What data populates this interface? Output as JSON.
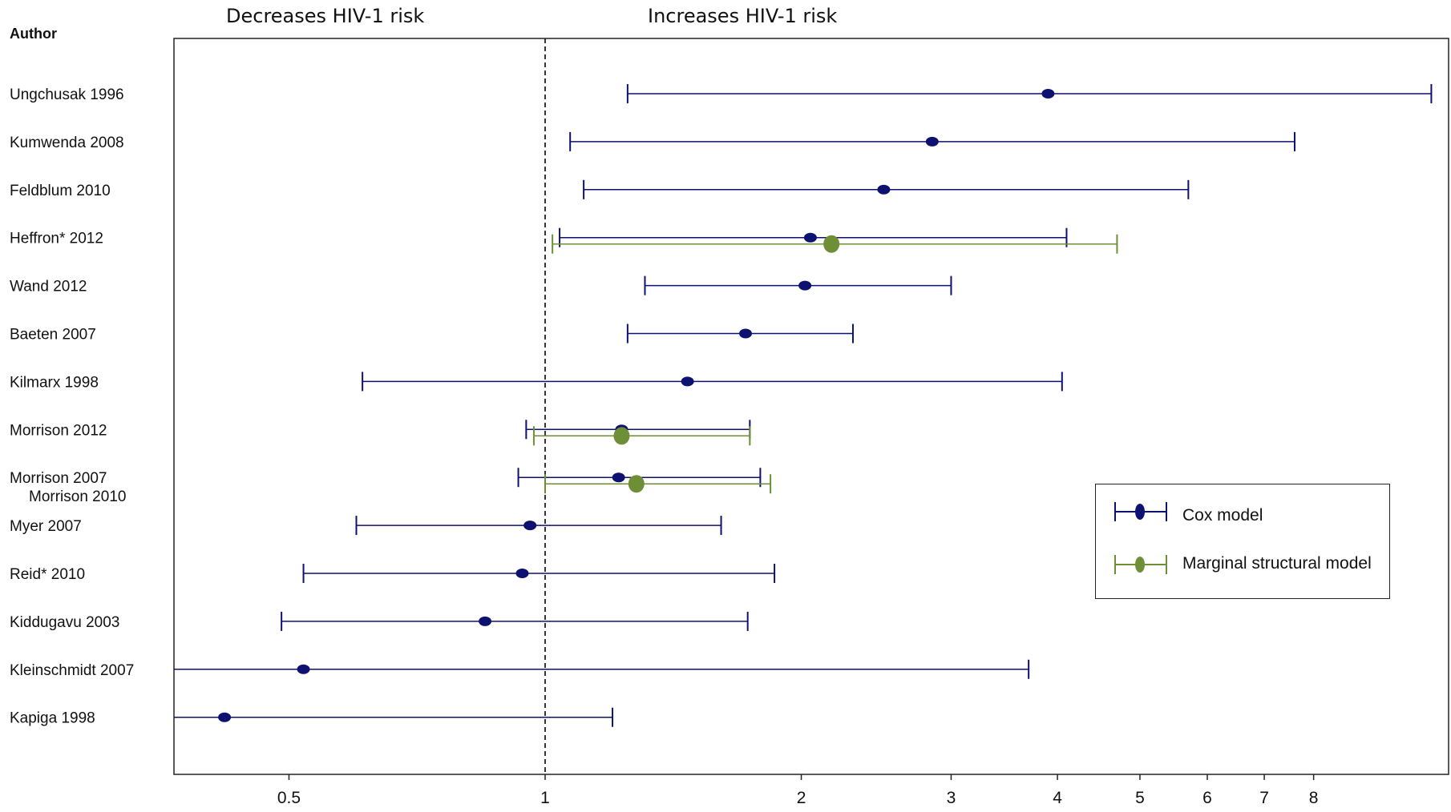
{
  "header": {
    "left": "Decreases HIV-1 risk",
    "right": "Increases HIV-1 risk",
    "author": "Author"
  },
  "colors": {
    "cox": "#0d1170",
    "msm": "#6e8f35",
    "axis": "#222222"
  },
  "legend": {
    "cox": "Cox model",
    "msm": "Marginal structural model"
  },
  "chart_data": {
    "type": "forest",
    "x_scale": "log",
    "xlim": [
      0.3,
      9.5
    ],
    "reference_line": 1,
    "x_ticks": [
      0.5,
      1,
      2,
      3,
      4,
      5,
      6,
      7,
      8
    ],
    "x_tick_labels": [
      "0.5",
      "1",
      "2",
      "3",
      "4",
      "5",
      "6",
      "7",
      "8"
    ],
    "legend_position": "right",
    "studies": [
      {
        "label": "Ungchusak 1996",
        "cox": {
          "est": 3.9,
          "lo": 1.25,
          "hi": 11.0
        }
      },
      {
        "label": "Kumwenda 2008",
        "cox": {
          "est": 2.85,
          "lo": 1.07,
          "hi": 7.6
        }
      },
      {
        "label": "Feldblum 2010",
        "cox": {
          "est": 2.5,
          "lo": 1.11,
          "hi": 5.7
        }
      },
      {
        "label": "Heffron* 2012",
        "cox": {
          "est": 2.05,
          "lo": 1.04,
          "hi": 4.1
        },
        "msm": {
          "est": 2.17,
          "lo": 1.02,
          "hi": 4.7
        }
      },
      {
        "label": "Wand 2012",
        "cox": {
          "est": 2.02,
          "lo": 1.31,
          "hi": 3.0
        }
      },
      {
        "label": "Baeten 2007",
        "cox": {
          "est": 1.72,
          "lo": 1.25,
          "hi": 2.3
        }
      },
      {
        "label": "Kilmarx 1998",
        "cox": {
          "est": 1.47,
          "lo": 0.61,
          "hi": 4.05
        }
      },
      {
        "label": "Morrison 2012",
        "cox": {
          "est": 1.23,
          "lo": 0.95,
          "hi": 1.74
        },
        "msm": {
          "est": 1.23,
          "lo": 0.97,
          "hi": 1.74
        }
      },
      {
        "label": "Morrison 2007",
        "label2": "Morrison 2010",
        "cox": {
          "est": 1.22,
          "lo": 0.93,
          "hi": 1.79
        },
        "msm": {
          "est": 1.28,
          "lo": 1.0,
          "hi": 1.84
        }
      },
      {
        "label": "Myer 2007",
        "cox": {
          "est": 0.96,
          "lo": 0.6,
          "hi": 1.61
        }
      },
      {
        "label": "Reid* 2010",
        "cox": {
          "est": 0.94,
          "lo": 0.52,
          "hi": 1.86
        }
      },
      {
        "label": "Kiddugavu 2003",
        "cox": {
          "est": 0.85,
          "lo": 0.49,
          "hi": 1.73
        }
      },
      {
        "label": "Kleinschmidt 2007",
        "cox": {
          "est": 0.52,
          "lo": 0.315,
          "hi": 3.7
        }
      },
      {
        "label": "Kapiga 1998",
        "cox": {
          "est": 0.42,
          "lo": 0.32,
          "hi": 1.2
        }
      }
    ]
  }
}
